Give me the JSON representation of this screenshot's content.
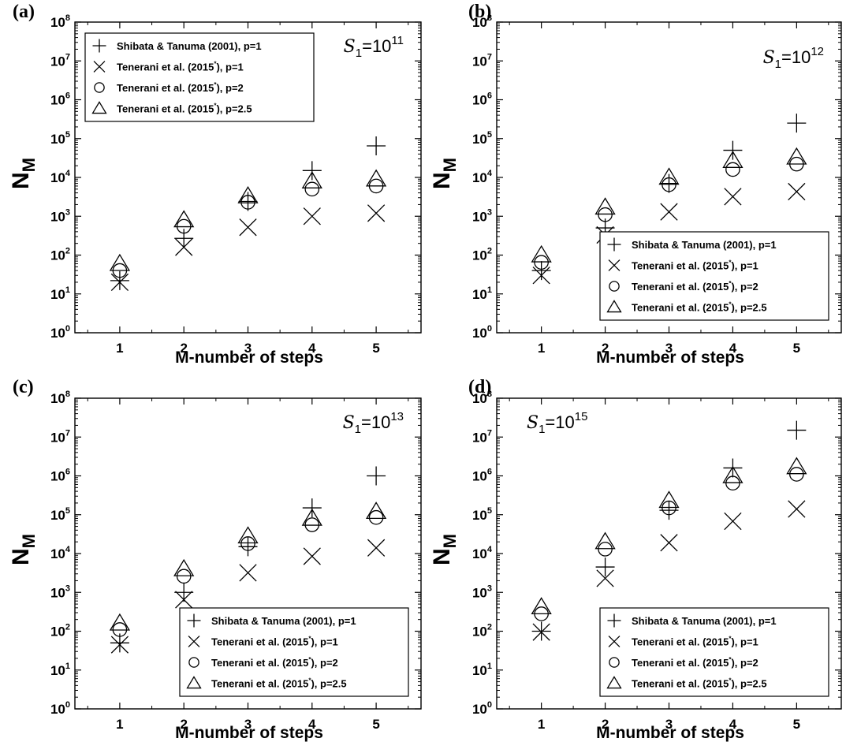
{
  "chart_data": [
    {
      "type": "scatter",
      "panel_label": "(a)",
      "annotation": {
        "prefix": "S",
        "sub": "1",
        "mid": "=10",
        "exp": "11"
      },
      "annotation_pos": "top-right",
      "legend_pos": "top-left",
      "xlabel": "M-number of steps",
      "ylabel": {
        "main": "N",
        "sub": "M"
      },
      "xlim": [
        0.3,
        5.7
      ],
      "ylim_exp": [
        0,
        8
      ],
      "x_ticks": [
        "1",
        "2",
        "3",
        "4",
        "5"
      ],
      "y_tick_labels": [
        {
          "base": "10",
          "exp": "0"
        },
        {
          "base": "10",
          "exp": "1"
        },
        {
          "base": "10",
          "exp": "2"
        },
        {
          "base": "10",
          "exp": "3"
        },
        {
          "base": "10",
          "exp": "4"
        },
        {
          "base": "10",
          "exp": "5"
        },
        {
          "base": "10",
          "exp": "6"
        },
        {
          "base": "10",
          "exp": "7"
        },
        {
          "base": "10",
          "exp": "8"
        }
      ],
      "x": [
        1,
        2,
        3,
        4,
        5
      ],
      "series": [
        {
          "marker": "plus",
          "legend": {
            "main": "Shibata & Tanuma (2001), p=1"
          },
          "values": [
            22,
            270,
            2400,
            15000,
            65000
          ]
        },
        {
          "marker": "cross",
          "legend": {
            "main": "Tenerani et al. (2015",
            "sup": "*",
            "tail": "), p=1"
          },
          "values": [
            20,
            160,
            520,
            1000,
            1200
          ]
        },
        {
          "marker": "circle",
          "legend": {
            "main": "Tenerani et al. (2015",
            "sup": "*",
            "tail": "), p=2"
          },
          "values": [
            40,
            550,
            2300,
            5000,
            6000
          ]
        },
        {
          "marker": "triangle",
          "legend": {
            "main": "Tenerani et al. (2015",
            "sup": "*",
            "tail": "), p=2.5"
          },
          "values": [
            60,
            800,
            3300,
            8000,
            9000
          ]
        }
      ]
    },
    {
      "type": "scatter",
      "panel_label": "(b)",
      "annotation": {
        "prefix": "S",
        "sub": "1",
        "mid": "=10",
        "exp": "12"
      },
      "annotation_pos": "top-right",
      "legend_pos": "bottom-right",
      "xlabel": "M-number of steps",
      "ylabel": {
        "main": "N",
        "sub": "M"
      },
      "xlim": [
        0.3,
        5.7
      ],
      "ylim_exp": [
        0,
        8
      ],
      "x_ticks": [
        "1",
        "2",
        "3",
        "4",
        "5"
      ],
      "y_tick_labels": [
        {
          "base": "10",
          "exp": "0"
        },
        {
          "base": "10",
          "exp": "1"
        },
        {
          "base": "10",
          "exp": "2"
        },
        {
          "base": "10",
          "exp": "3"
        },
        {
          "base": "10",
          "exp": "4"
        },
        {
          "base": "10",
          "exp": "5"
        },
        {
          "base": "10",
          "exp": "6"
        },
        {
          "base": "10",
          "exp": "7"
        },
        {
          "base": "10",
          "exp": "8"
        }
      ],
      "x": [
        1,
        2,
        3,
        4,
        5
      ],
      "series": [
        {
          "marker": "plus",
          "legend": {
            "main": "Shibata & Tanuma (2001), p=1"
          },
          "values": [
            40,
            500,
            7000,
            50000,
            250000
          ]
        },
        {
          "marker": "cross",
          "legend": {
            "main": "Tenerani et al. (2015",
            "sup": "*",
            "tail": "), p=1"
          },
          "values": [
            30,
            330,
            1300,
            3200,
            4300
          ]
        },
        {
          "marker": "circle",
          "legend": {
            "main": "Tenerani et al. (2015",
            "sup": "*",
            "tail": "), p=2"
          },
          "values": [
            65,
            1100,
            6500,
            16000,
            22000
          ]
        },
        {
          "marker": "triangle",
          "legend": {
            "main": "Tenerani et al. (2015",
            "sup": "*",
            "tail": "), p=2.5"
          },
          "values": [
            100,
            1700,
            10000,
            27000,
            33000
          ]
        }
      ]
    },
    {
      "type": "scatter",
      "panel_label": "(c)",
      "annotation": {
        "prefix": "S",
        "sub": "1",
        "mid": "=10",
        "exp": "13"
      },
      "annotation_pos": "top-right",
      "legend_pos": "bottom-right",
      "xlabel": "M-number of steps",
      "ylabel": {
        "main": "N",
        "sub": "M"
      },
      "xlim": [
        0.3,
        5.7
      ],
      "ylim_exp": [
        0,
        8
      ],
      "x_ticks": [
        "1",
        "2",
        "3",
        "4",
        "5"
      ],
      "y_tick_labels": [
        {
          "base": "10",
          "exp": "0"
        },
        {
          "base": "10",
          "exp": "1"
        },
        {
          "base": "10",
          "exp": "2"
        },
        {
          "base": "10",
          "exp": "3"
        },
        {
          "base": "10",
          "exp": "4"
        },
        {
          "base": "10",
          "exp": "5"
        },
        {
          "base": "10",
          "exp": "6"
        },
        {
          "base": "10",
          "exp": "7"
        },
        {
          "base": "10",
          "exp": "8"
        }
      ],
      "x": [
        1,
        2,
        3,
        4,
        5
      ],
      "series": [
        {
          "marker": "plus",
          "legend": {
            "main": "Shibata & Tanuma (2001), p=1"
          },
          "values": [
            50,
            1000,
            15000,
            150000,
            1000000
          ]
        },
        {
          "marker": "cross",
          "legend": {
            "main": "Tenerani et al. (2015",
            "sup": "*",
            "tail": "), p=1"
          },
          "values": [
            45,
            650,
            3200,
            8500,
            14000
          ]
        },
        {
          "marker": "circle",
          "legend": {
            "main": "Tenerani et al. (2015",
            "sup": "*",
            "tail": "), p=2"
          },
          "values": [
            110,
            2600,
            18000,
            55000,
            85000
          ]
        },
        {
          "marker": "triangle",
          "legend": {
            "main": "Tenerani et al. (2015",
            "sup": "*",
            "tail": "), p=2.5"
          },
          "values": [
            160,
            4000,
            28000,
            80000,
            120000
          ]
        }
      ]
    },
    {
      "type": "scatter",
      "panel_label": "(d)",
      "annotation": {
        "prefix": "S",
        "sub": "1",
        "mid": "=10",
        "exp": "15"
      },
      "annotation_pos": "top-left",
      "legend_pos": "bottom-right",
      "xlabel": "M-number of steps",
      "ylabel": {
        "main": "N",
        "sub": "M"
      },
      "xlim": [
        0.3,
        5.7
      ],
      "ylim_exp": [
        0,
        8
      ],
      "x_ticks": [
        "1",
        "2",
        "3",
        "4",
        "5"
      ],
      "y_tick_labels": [
        {
          "base": "10",
          "exp": "0"
        },
        {
          "base": "10",
          "exp": "1"
        },
        {
          "base": "10",
          "exp": "2"
        },
        {
          "base": "10",
          "exp": "3"
        },
        {
          "base": "10",
          "exp": "4"
        },
        {
          "base": "10",
          "exp": "5"
        },
        {
          "base": "10",
          "exp": "6"
        },
        {
          "base": "10",
          "exp": "7"
        },
        {
          "base": "10",
          "exp": "8"
        }
      ],
      "x": [
        1,
        2,
        3,
        4,
        5
      ],
      "series": [
        {
          "marker": "plus",
          "legend": {
            "main": "Shibata & Tanuma (2001), p=1"
          },
          "values": [
            100,
            4500,
            130000,
            1600000,
            15000000
          ]
        },
        {
          "marker": "cross",
          "legend": {
            "main": "Tenerani et al. (2015",
            "sup": "*",
            "tail": "), p=1"
          },
          "values": [
            95,
            2300,
            19000,
            68000,
            140000
          ]
        },
        {
          "marker": "circle",
          "legend": {
            "main": "Tenerani et al. (2015",
            "sup": "*",
            "tail": "), p=2"
          },
          "values": [
            280,
            13000,
            150000,
            650000,
            1100000
          ]
        },
        {
          "marker": "triangle",
          "legend": {
            "main": "Tenerani et al. (2015",
            "sup": "*",
            "tail": "), p=2.5"
          },
          "values": [
            420,
            20000,
            230000,
            1000000,
            1700000
          ]
        }
      ]
    }
  ]
}
